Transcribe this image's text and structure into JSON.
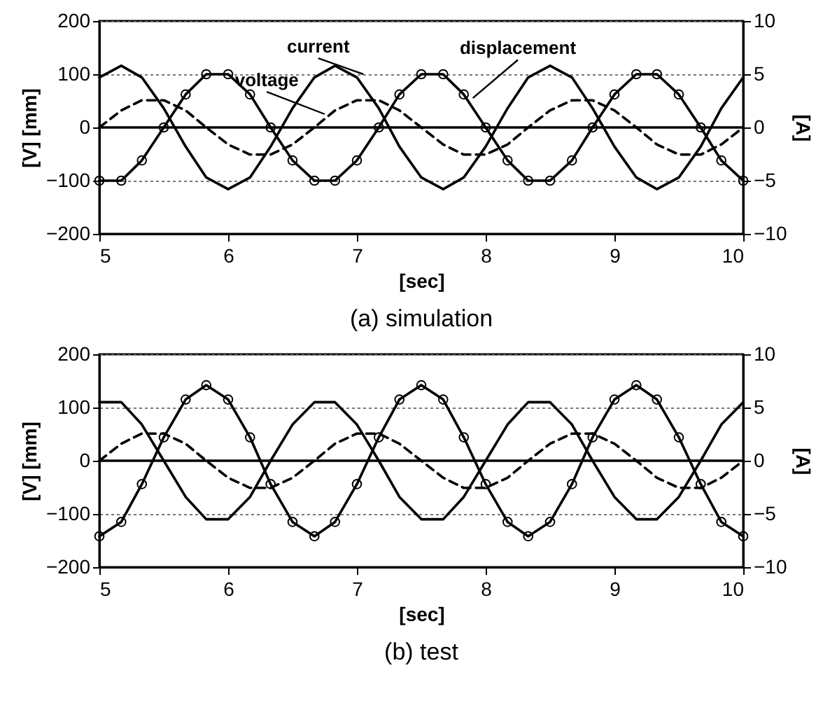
{
  "chart_data": [
    {
      "type": "line",
      "title": "(a)  simulation",
      "xlabel": "[sec]",
      "ylabel": "[V] [mm]",
      "y2label": "[A]",
      "grid": "y",
      "xlim": [
        5,
        10
      ],
      "xticks": [
        5,
        6,
        7,
        8,
        9,
        10
      ],
      "ylim": [
        -200,
        200
      ],
      "yticks": [
        -200,
        -100,
        0,
        100,
        200
      ],
      "y2lim": [
        -10,
        10
      ],
      "y2ticks": [
        -10,
        -5,
        0,
        5,
        10
      ],
      "x": [
        5,
        5.17,
        5.33,
        5.5,
        5.67,
        5.83,
        6,
        6.17,
        6.33,
        6.5,
        6.67,
        6.83,
        7,
        7.17,
        7.33,
        7.5,
        7.67,
        7.83,
        8,
        8.17,
        8.33,
        8.5,
        8.67,
        8.83,
        9,
        9.17,
        9.33,
        9.5,
        9.67,
        9.83,
        10
      ],
      "series": [
        {
          "color": "#000000",
          "line_style": "dashed",
          "values": [
            0,
            32,
            51,
            51,
            32,
            0,
            -32,
            -51,
            -51,
            -32,
            0,
            32,
            51,
            51,
            32,
            0,
            -32,
            -51,
            -51,
            -32,
            0,
            32,
            51,
            51,
            32,
            0,
            -32,
            -51,
            -51,
            -32,
            0
          ]
        },
        {
          "color": "#000000",
          "line_style": "solid",
          "axis": "y2",
          "values": [
            4.7,
            5.8,
            4.7,
            1.8,
            -1.8,
            -4.7,
            -5.8,
            -4.7,
            -1.8,
            1.8,
            4.7,
            5.8,
            4.7,
            1.8,
            -1.8,
            -4.7,
            -5.8,
            -4.7,
            -1.8,
            1.8,
            4.7,
            5.8,
            4.7,
            1.8,
            -1.8,
            -4.7,
            -5.8,
            -4.7,
            -1.8,
            1.8,
            4.7
          ]
        },
        {
          "color": "#000000",
          "line_style": "solid",
          "marker": "circle",
          "values": [
            -100,
            -100,
            -62,
            0,
            62,
            100,
            100,
            62,
            0,
            -62,
            -100,
            -100,
            -62,
            0,
            62,
            100,
            100,
            62,
            0,
            -62,
            -100,
            -100,
            -62,
            0,
            62,
            100,
            100,
            62,
            0,
            -62,
            -100
          ]
        }
      ],
      "ref_lines": [
        {
          "axis": "y",
          "value": 0,
          "color": "#000000"
        }
      ],
      "annotations": [
        {
          "text": "voltage",
          "x": 6.75,
          "y": 25
        },
        {
          "text": "current",
          "x": 7.05,
          "y": 100
        },
        {
          "text": "displacement",
          "x": 7.9,
          "y": 55
        }
      ]
    },
    {
      "type": "line",
      "title": "(b)  test",
      "xlabel": "[sec]",
      "ylabel": "[V] [mm]",
      "y2label": "[A]",
      "grid": "y",
      "xlim": [
        5,
        10
      ],
      "xticks": [
        5,
        6,
        7,
        8,
        9,
        10
      ],
      "ylim": [
        -200,
        200
      ],
      "yticks": [
        -200,
        -100,
        0,
        100,
        200
      ],
      "y2lim": [
        -10,
        10
      ],
      "y2ticks": [
        -10,
        -5,
        0,
        5,
        10
      ],
      "x": [
        5,
        5.17,
        5.33,
        5.5,
        5.67,
        5.83,
        6,
        6.17,
        6.33,
        6.5,
        6.67,
        6.83,
        7,
        7.17,
        7.33,
        7.5,
        7.67,
        7.83,
        8,
        8.17,
        8.33,
        8.5,
        8.67,
        8.83,
        9,
        9.17,
        9.33,
        9.5,
        9.67,
        9.83,
        10
      ],
      "series": [
        {
          "color": "#000000",
          "line_style": "dashed",
          "values": [
            0,
            32,
            51,
            51,
            32,
            0,
            -32,
            -51,
            -51,
            -32,
            0,
            32,
            51,
            51,
            32,
            0,
            -32,
            -51,
            -51,
            -32,
            0,
            32,
            51,
            51,
            32,
            0,
            -32,
            -51,
            -51,
            -32,
            0
          ]
        },
        {
          "color": "#000000",
          "line_style": "solid",
          "axis": "y2",
          "values": [
            5.5,
            5.5,
            3.4,
            0,
            -3.4,
            -5.5,
            -5.5,
            -3.4,
            0,
            3.4,
            5.5,
            5.5,
            3.4,
            0,
            -3.4,
            -5.5,
            -5.5,
            -3.4,
            0,
            3.4,
            5.5,
            5.5,
            3.4,
            0,
            -3.4,
            -5.5,
            -5.5,
            -3.4,
            0,
            3.4,
            5.5
          ]
        },
        {
          "color": "#000000",
          "line_style": "solid",
          "marker": "circle",
          "values": [
            -142,
            -115,
            -44,
            44,
            115,
            142,
            115,
            44,
            -44,
            -115,
            -142,
            -115,
            -44,
            44,
            115,
            142,
            115,
            44,
            -44,
            -115,
            -142,
            -115,
            -44,
            44,
            115,
            142,
            115,
            44,
            -44,
            -115,
            -142
          ]
        }
      ],
      "ref_lines": [
        {
          "axis": "y",
          "value": 0,
          "color": "#000000"
        }
      ]
    }
  ]
}
